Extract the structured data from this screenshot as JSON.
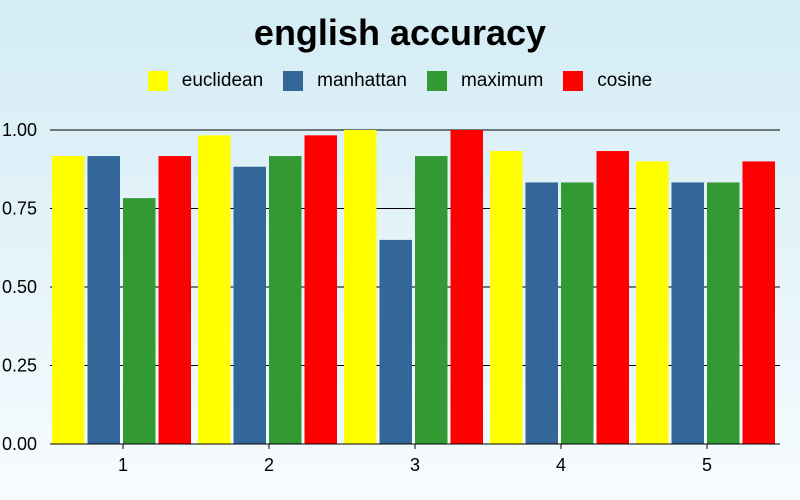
{
  "chart_data": {
    "type": "bar",
    "title": "english accuracy",
    "xlabel": "",
    "ylabel": "",
    "categories": [
      "1",
      "2",
      "3",
      "4",
      "5"
    ],
    "ylim": [
      0,
      1.0
    ],
    "yticks": [
      "0.00",
      "0.25",
      "0.50",
      "0.75",
      "1.00"
    ],
    "grid": true,
    "legend_position": "top-center",
    "series": [
      {
        "name": "euclidean",
        "color": "#ffff00",
        "values": [
          0.917,
          0.983,
          1.0,
          0.933,
          0.9
        ]
      },
      {
        "name": "manhattan",
        "color": "#336699",
        "values": [
          0.917,
          0.883,
          0.65,
          0.833,
          0.833
        ]
      },
      {
        "name": "maximum",
        "color": "#339933",
        "values": [
          0.783,
          0.917,
          0.917,
          0.833,
          0.833
        ]
      },
      {
        "name": "cosine",
        "color": "#ff0000",
        "values": [
          0.917,
          0.983,
          1.0,
          0.933,
          0.9
        ]
      }
    ]
  }
}
